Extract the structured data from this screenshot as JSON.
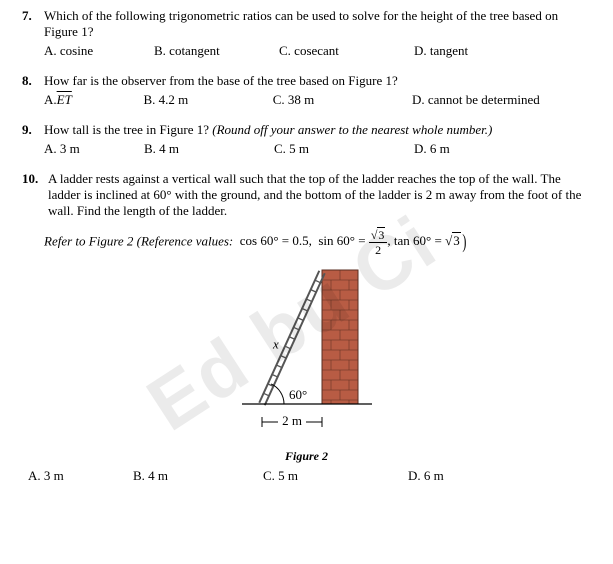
{
  "q7": {
    "num": "7.",
    "text": "Which of the following trigonometric ratios can be used to solve for the height of the tree based on Figure 1?",
    "choices": {
      "A": "A. cosine",
      "B": "B. cotangent",
      "C": "C. cosecant",
      "D": "D. tangent"
    },
    "widths": {
      "A": 110,
      "B": 125,
      "C": 135,
      "D": 100
    }
  },
  "q8": {
    "num": "8.",
    "text": "How far is the observer from the base of the tree based on Figure 1?",
    "choices": {
      "A_prefix": "A. ",
      "A_val": "ET",
      "B": "B. 4.2 m",
      "C": "C. 38 m",
      "D": "D. cannot be determined"
    },
    "widths": {
      "A": 100,
      "B": 130,
      "C": 140,
      "D": 180
    }
  },
  "q9": {
    "num": "9.",
    "text_part1": "How tall is the tree in Figure 1? ",
    "text_italic": "(Round off your answer to the nearest whole number.)",
    "choices": {
      "A": "A. 3 m",
      "B": "B. 4 m",
      "C": "C. 5 m",
      "D": "D. 6 m"
    },
    "widths": {
      "A": 100,
      "B": 130,
      "C": 140,
      "D": 100
    }
  },
  "q10": {
    "num": "10.",
    "text": "A ladder rests against a vertical wall such that the top of the ladder reaches the top of the wall. The ladder is inclined at 60° with the ground, and the bottom of the ladder is 2 m away from the foot of the wall.  Find the length of the ladder.",
    "refer_prefix": "Refer to Figure 2 (Reference values:",
    "ref_cos_l": "cos 60° = 0.5,",
    "ref_sin_l": "sin 60° =",
    "ref_tan_l": ", tan 60° =",
    "sqrt3": "3",
    "two": "2",
    "choices": {
      "A": "A. 3 m",
      "B": "B. 4 m",
      "C": "C. 5 m",
      "D": "D. 6 m"
    },
    "widths": {
      "A": 105,
      "B": 130,
      "C": 145,
      "D": 100
    }
  },
  "figure2": {
    "caption": "Figure 2",
    "x_label": "x",
    "angle": "60°",
    "base": "2 m",
    "colors": {
      "wall_fill": "#b85c44",
      "wall_stroke": "#5a2e20",
      "ladder_fill": "#cfcfcf",
      "ladder_stroke": "#555555",
      "line": "#000000"
    },
    "svg": {
      "w": 190,
      "h": 185
    }
  },
  "watermark": "Ed   bu Ci"
}
